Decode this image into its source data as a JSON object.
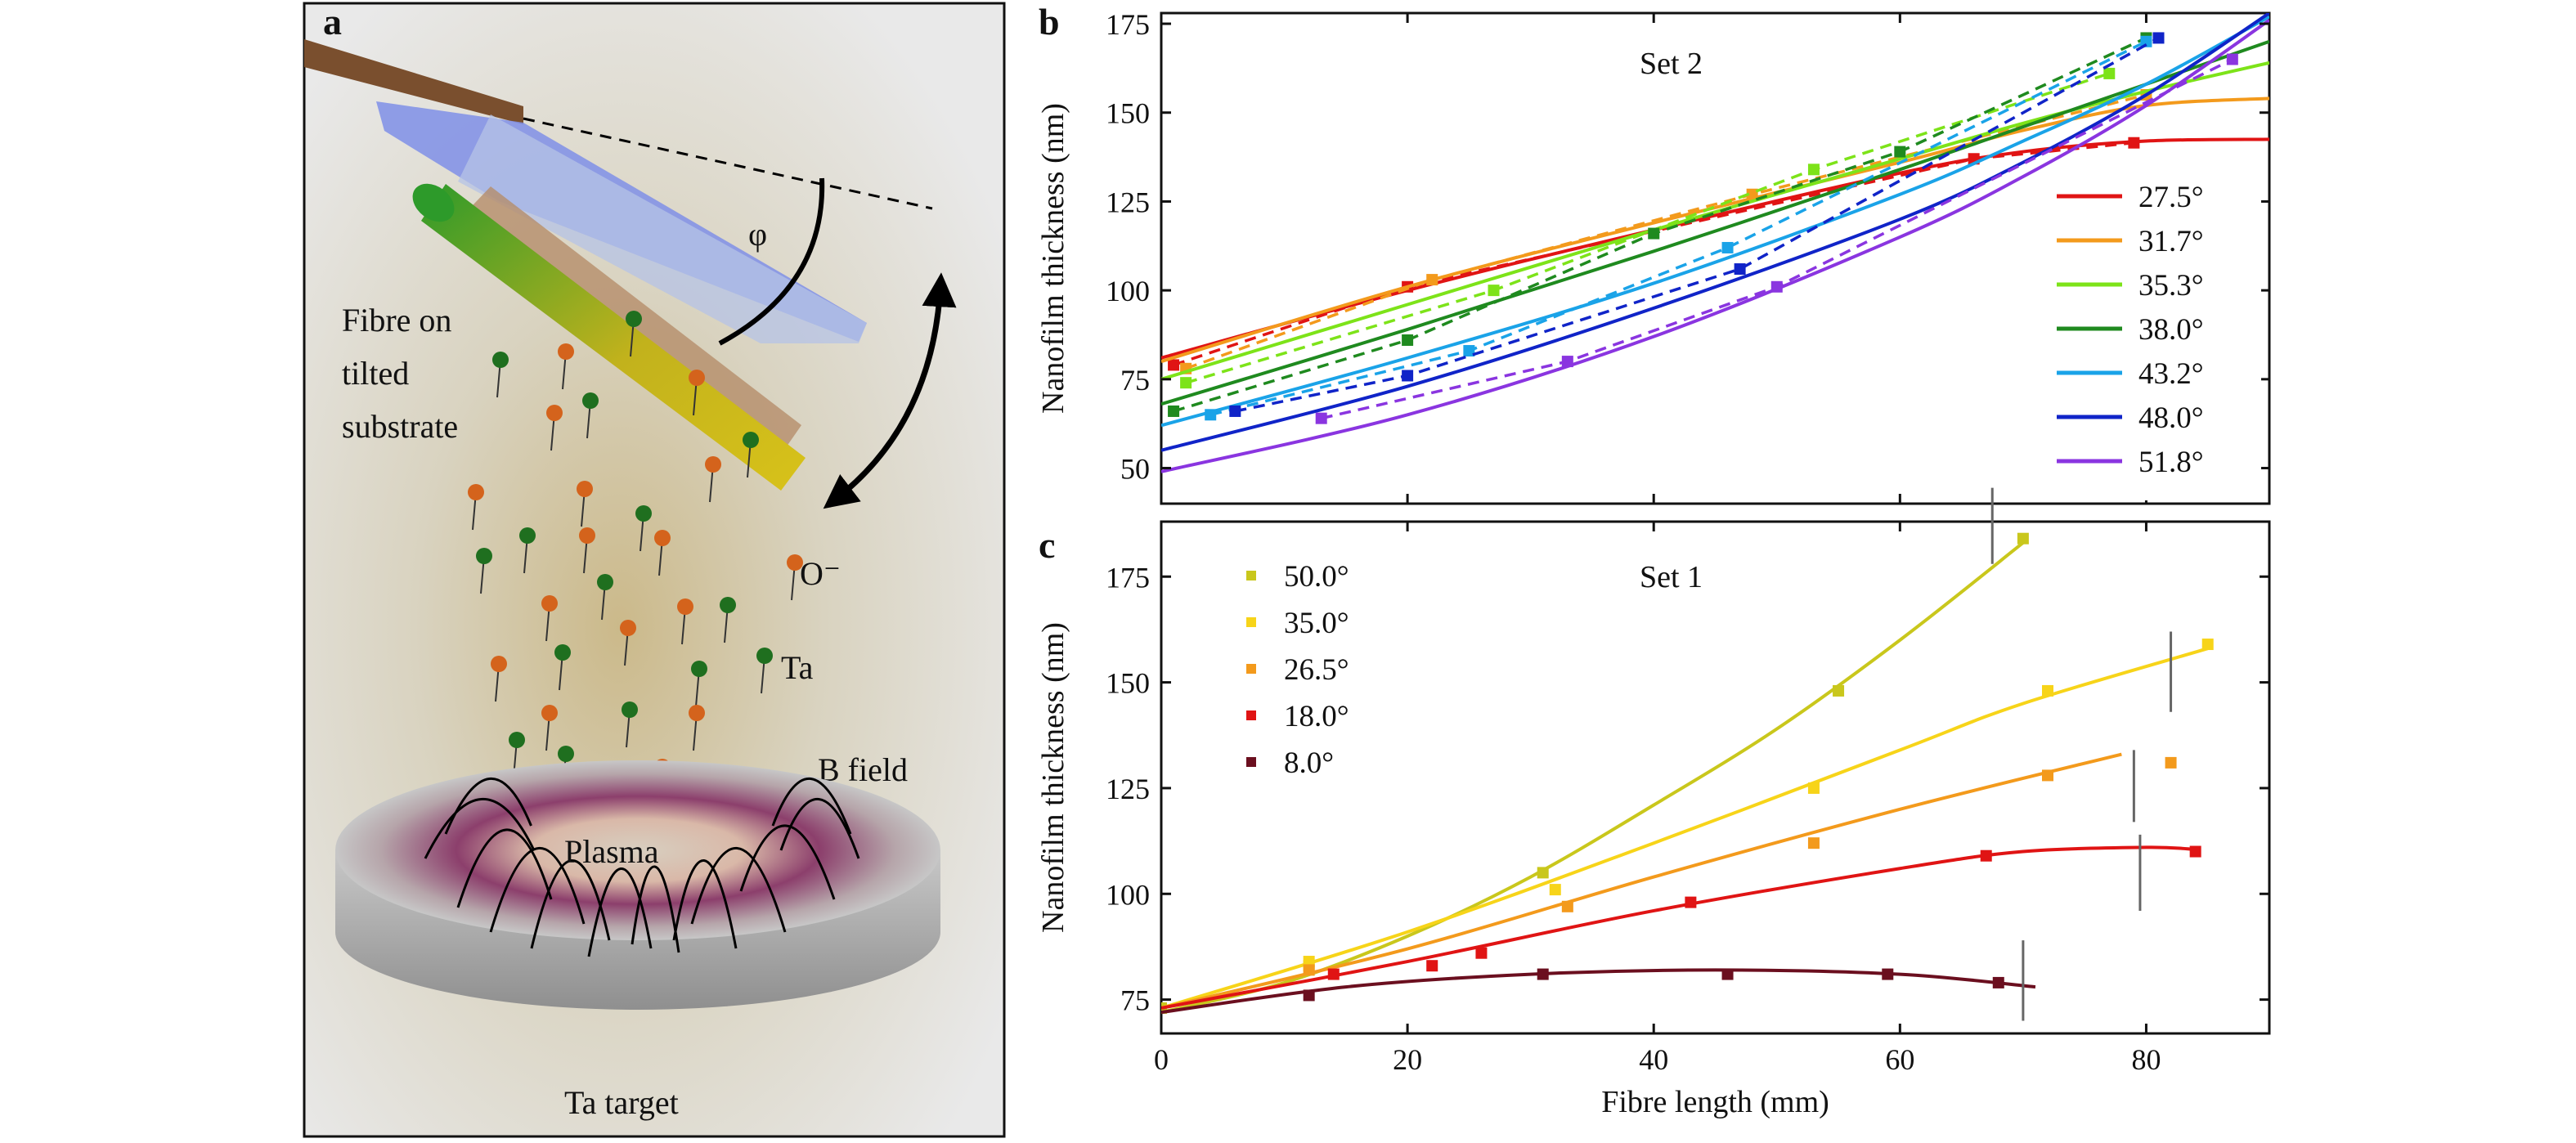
{
  "panel_a": {
    "letter": "a",
    "labels": {
      "fibre": [
        "Fibre on",
        "tilted",
        "substrate"
      ],
      "phi": "φ",
      "oxygen": "O⁻",
      "ta": "Ta",
      "bfield": "B field",
      "plasma": "Plasma",
      "target": "Ta target"
    },
    "icons": [
      "substrate-holder-icon",
      "fibre-icon",
      "plasma-disc-icon",
      "ion-icon",
      "rotation-arrow-icon"
    ],
    "colors": {
      "ta_ion": "#1f6f1f",
      "o_ion": "#d4631c",
      "fibre": "#b9b31a",
      "substrate": "#8a5a3c"
    }
  },
  "chart_data": [
    {
      "panel": "b",
      "type": "line",
      "title": "Set 2",
      "xlabel": "",
      "ylabel": "Nanofilm thickness (nm)",
      "xlim": [
        0,
        90
      ],
      "ylim": [
        40,
        178
      ],
      "xticks": [
        "0",
        "20",
        "40",
        "60",
        "80"
      ],
      "yticks": [
        "50",
        "75",
        "100",
        "125",
        "150",
        "175"
      ],
      "grid": false,
      "legend_position": "right",
      "series": [
        {
          "name": "27.5°",
          "color": "#e01414",
          "fit": [
            [
              0,
              81
            ],
            [
              20,
              100
            ],
            [
              40,
              117
            ],
            [
              60,
              133
            ],
            [
              70,
              139
            ],
            [
              80,
              142
            ],
            [
              90,
              142.5
            ]
          ],
          "points": [
            [
              1,
              79
            ],
            [
              20,
              101
            ],
            [
              66,
              137
            ],
            [
              79,
              141.5
            ]
          ]
        },
        {
          "name": "31.7°",
          "color": "#f39a1c",
          "fit": [
            [
              0,
              80
            ],
            [
              20,
              101
            ],
            [
              40,
              119
            ],
            [
              60,
              136
            ],
            [
              70,
              145
            ],
            [
              80,
              152
            ],
            [
              90,
              154
            ]
          ],
          "points": [
            [
              2,
              78
            ],
            [
              22,
              103
            ],
            [
              48,
              127
            ],
            [
              80,
              155
            ]
          ]
        },
        {
          "name": "35.3°",
          "color": "#7de319",
          "fit": [
            [
              0,
              75
            ],
            [
              20,
              96
            ],
            [
              40,
              117
            ],
            [
              60,
              137
            ],
            [
              70,
              147
            ],
            [
              80,
              156
            ],
            [
              90,
              164
            ]
          ],
          "points": [
            [
              2,
              74
            ],
            [
              27,
              100
            ],
            [
              53,
              134
            ],
            [
              77,
              161
            ]
          ]
        },
        {
          "name": "38.0°",
          "color": "#1f8a1f",
          "fit": [
            [
              0,
              68
            ],
            [
              20,
              89
            ],
            [
              40,
              111
            ],
            [
              60,
              134
            ],
            [
              70,
              146
            ],
            [
              80,
              158
            ],
            [
              90,
              170
            ]
          ],
          "points": [
            [
              1,
              66
            ],
            [
              20,
              86
            ],
            [
              40,
              116
            ],
            [
              60,
              139
            ],
            [
              80,
              171
            ]
          ]
        },
        {
          "name": "43.2°",
          "color": "#1aa3e8",
          "fit": [
            [
              0,
              62
            ],
            [
              20,
              81
            ],
            [
              40,
              102
            ],
            [
              60,
              127
            ],
            [
              70,
              142
            ],
            [
              80,
              158
            ],
            [
              90,
              177
            ]
          ],
          "points": [
            [
              4,
              65
            ],
            [
              25,
              83
            ],
            [
              46,
              112
            ],
            [
              80,
              170
            ]
          ]
        },
        {
          "name": "48.0°",
          "color": "#1024c8",
          "fit": [
            [
              0,
              55
            ],
            [
              20,
              73
            ],
            [
              40,
              95
            ],
            [
              60,
              120
            ],
            [
              70,
              136
            ],
            [
              80,
              155
            ],
            [
              90,
              178
            ]
          ],
          "points": [
            [
              6,
              66
            ],
            [
              20,
              76
            ],
            [
              47,
              106
            ],
            [
              81,
              171
            ]
          ]
        },
        {
          "name": "51.8°",
          "color": "#8a35e0",
          "fit": [
            [
              0,
              49
            ],
            [
              20,
              65
            ],
            [
              40,
              87
            ],
            [
              60,
              115
            ],
            [
              70,
              132
            ],
            [
              80,
              152
            ],
            [
              90,
              176
            ]
          ],
          "points": [
            [
              13,
              64
            ],
            [
              33,
              80
            ],
            [
              50,
              101
            ],
            [
              87,
              165
            ]
          ]
        }
      ]
    },
    {
      "panel": "c",
      "type": "line",
      "title": "Set 1",
      "xlabel": "Fibre length (mm)",
      "ylabel": "Nanofilm thickness (nm)",
      "xlim": [
        0,
        90
      ],
      "ylim": [
        67,
        188
      ],
      "xticks": [
        "0",
        "20",
        "40",
        "60",
        "80"
      ],
      "yticks": [
        "75",
        "100",
        "125",
        "150",
        "175"
      ],
      "grid": false,
      "legend_position": "top-left",
      "series": [
        {
          "name": "50.0°",
          "color": "#c9c71c",
          "fit": [
            [
              0,
              72
            ],
            [
              10,
              79
            ],
            [
              20,
              90
            ],
            [
              30,
              104
            ],
            [
              40,
              121
            ],
            [
              50,
              139
            ],
            [
              60,
              160
            ],
            [
              70,
              183
            ]
          ],
          "points": [
            [
              0,
              73
            ],
            [
              12,
              83
            ],
            [
              31,
              105
            ],
            [
              55,
              148
            ],
            [
              70,
              184
            ]
          ]
        },
        {
          "name": "35.0°",
          "color": "#f7d419",
          "fit": [
            [
              0,
              73
            ],
            [
              20,
              91
            ],
            [
              40,
              112
            ],
            [
              60,
              134
            ],
            [
              70,
              145
            ],
            [
              85,
              158
            ]
          ],
          "points": [
            [
              12,
              84
            ],
            [
              32,
              101
            ],
            [
              53,
              125
            ],
            [
              72,
              148
            ],
            [
              85,
              159
            ]
          ]
        },
        {
          "name": "26.5°",
          "color": "#f39a1c",
          "fit": [
            [
              0,
              73
            ],
            [
              20,
              87
            ],
            [
              40,
              104
            ],
            [
              60,
              120
            ],
            [
              78,
              133
            ]
          ],
          "points": [
            [
              12,
              82
            ],
            [
              33,
              97
            ],
            [
              53,
              112
            ],
            [
              72,
              128
            ],
            [
              82,
              131
            ]
          ]
        },
        {
          "name": "18.0°",
          "color": "#e01414",
          "fit": [
            [
              0,
              73
            ],
            [
              20,
              84
            ],
            [
              40,
              96
            ],
            [
              60,
              106
            ],
            [
              70,
              110
            ],
            [
              80,
              111
            ],
            [
              84,
              110.5
            ]
          ],
          "points": [
            [
              14,
              81
            ],
            [
              22,
              83
            ],
            [
              26,
              86
            ],
            [
              43,
              98
            ],
            [
              67,
              109
            ],
            [
              84,
              110
            ]
          ]
        },
        {
          "name": "8.0°",
          "color": "#6b0f1f",
          "fit": [
            [
              0,
              72
            ],
            [
              15,
              78
            ],
            [
              30,
              81
            ],
            [
              45,
              82
            ],
            [
              60,
              81
            ],
            [
              71,
              78
            ]
          ],
          "points": [
            [
              12,
              76
            ],
            [
              31,
              81
            ],
            [
              46,
              81
            ],
            [
              59,
              81
            ],
            [
              68,
              79
            ]
          ]
        }
      ],
      "cutoff_markers": [
        {
          "x": 67.5,
          "y": [
            178,
            196
          ]
        },
        {
          "x": 82,
          "y": [
            143,
            162
          ]
        },
        {
          "x": 79,
          "y": [
            117,
            134
          ]
        },
        {
          "x": 79.5,
          "y": [
            96,
            114
          ]
        },
        {
          "x": 70,
          "y": [
            70,
            89
          ]
        }
      ]
    }
  ]
}
